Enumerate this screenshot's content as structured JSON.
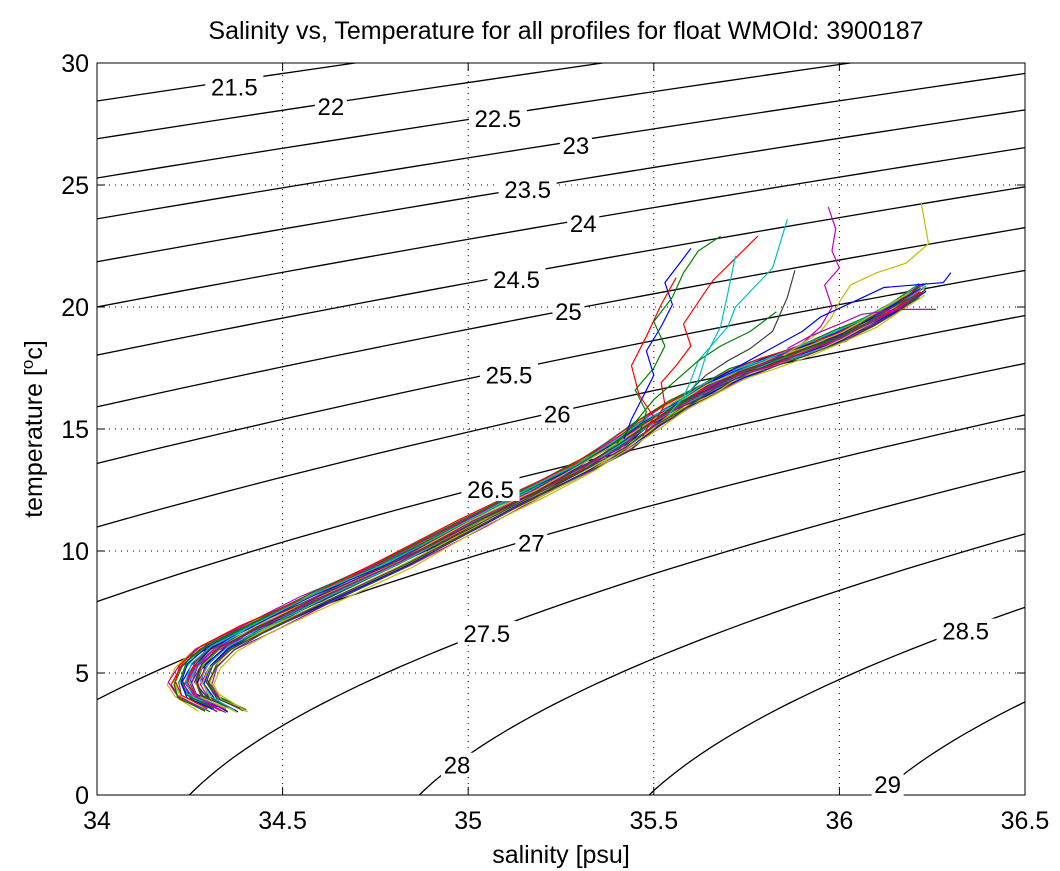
{
  "chart_data": {
    "type": "line",
    "title": "Salinity vs, Temperature for all profiles for float WMOId: 3900187",
    "xlabel": "salinity [psu]",
    "ylabel_prefix": "temperature [",
    "ylabel_sup": "o",
    "ylabel_suffix": "c]",
    "xlim": [
      34,
      36.5
    ],
    "ylim": [
      0,
      30
    ],
    "grid": true,
    "x_ticks": [
      34,
      34.5,
      35,
      35.5,
      36,
      36.5
    ],
    "x_tick_labels": [
      "34",
      "34.5",
      "35",
      "35.5",
      "36",
      "36.5"
    ],
    "y_ticks": [
      0,
      5,
      10,
      15,
      20,
      25,
      30
    ],
    "y_tick_labels": [
      "0",
      "5",
      "10",
      "15",
      "20",
      "25",
      "30"
    ],
    "density_contours": {
      "levels": [
        21.5,
        22,
        22.5,
        23,
        23.5,
        24,
        24.5,
        25,
        25.5,
        26,
        26.5,
        27,
        27.5,
        28,
        28.5,
        29
      ],
      "labels": [
        {
          "text": "21.5",
          "s": 34.37,
          "t": 29.0
        },
        {
          "text": "22",
          "s": 34.63,
          "t": 28.2
        },
        {
          "text": "22.5",
          "s": 35.08,
          "t": 27.7
        },
        {
          "text": "23",
          "s": 35.29,
          "t": 26.6
        },
        {
          "text": "23.5",
          "s": 35.16,
          "t": 24.8
        },
        {
          "text": "24",
          "s": 35.31,
          "t": 23.4
        },
        {
          "text": "24.5",
          "s": 35.13,
          "t": 21.1
        },
        {
          "text": "25",
          "s": 35.27,
          "t": 19.8
        },
        {
          "text": "25.5",
          "s": 35.11,
          "t": 17.2
        },
        {
          "text": "26",
          "s": 35.24,
          "t": 15.6
        },
        {
          "text": "26.5",
          "s": 35.06,
          "t": 12.5
        },
        {
          "text": "27",
          "s": 35.17,
          "t": 10.3
        },
        {
          "text": "27.5",
          "s": 35.05,
          "t": 6.6
        },
        {
          "text": "28",
          "s": 34.97,
          "t": 1.2
        },
        {
          "text": "28.5",
          "s": 36.34,
          "t": 6.7
        },
        {
          "text": "29",
          "s": 36.13,
          "t": 0.4
        }
      ]
    },
    "series_colors": [
      "#0000ff",
      "#008000",
      "#ff0000",
      "#00bfbf",
      "#bf00bf",
      "#bfbf00",
      "#404040"
    ],
    "profile_count": 42,
    "common_profile": {
      "salinity": [
        34.34,
        34.27,
        34.25,
        34.27,
        34.32,
        34.42,
        34.6,
        34.8,
        35.0,
        35.17,
        35.3,
        35.4,
        35.48,
        35.56,
        35.64,
        35.72,
        35.81,
        35.9,
        36.0,
        36.08,
        36.15,
        36.22
      ],
      "temperature": [
        3.5,
        4.0,
        4.6,
        5.3,
        6.0,
        6.8,
        8.1,
        9.5,
        11.1,
        12.4,
        13.4,
        14.3,
        15.2,
        15.9,
        16.6,
        17.2,
        17.7,
        18.2,
        18.8,
        19.4,
        20.0,
        20.7
      ]
    },
    "representative_profiles": [
      {
        "salinity": [
          35.42,
          35.44,
          35.47,
          35.5,
          35.48,
          35.52,
          35.55,
          35.53,
          35.57,
          35.6
        ],
        "temperature": [
          14.6,
          15.4,
          16.3,
          17.2,
          18.2,
          19.2,
          20.1,
          21.0,
          21.8,
          22.4
        ]
      },
      {
        "salinity": [
          35.46,
          35.48,
          35.45,
          35.5,
          35.53,
          35.5,
          35.55,
          35.58,
          35.62,
          35.68
        ],
        "temperature": [
          14.8,
          15.7,
          16.6,
          17.5,
          18.4,
          19.4,
          20.4,
          21.4,
          22.3,
          22.9
        ]
      },
      {
        "salinity": [
          35.5,
          35.53,
          35.52,
          35.56,
          35.6,
          35.58,
          35.62,
          35.66,
          35.72,
          35.78
        ],
        "temperature": [
          15.2,
          16.0,
          16.9,
          17.6,
          18.4,
          19.3,
          20.2,
          21.1,
          22.0,
          22.9
        ]
      },
      {
        "salinity": [
          35.54,
          35.58,
          35.6,
          35.62,
          35.66,
          35.7,
          35.72,
          35.77,
          35.82,
          35.86
        ],
        "temperature": [
          15.6,
          16.3,
          17.0,
          17.8,
          18.5,
          19.2,
          20.0,
          20.8,
          21.6,
          23.6
        ]
      },
      {
        "salinity": [
          35.78,
          35.84,
          35.9,
          35.95,
          35.98,
          35.96,
          36.0,
          35.98,
          35.99,
          35.97
        ],
        "temperature": [
          17.6,
          18.0,
          18.5,
          19.2,
          20.0,
          20.9,
          21.6,
          22.3,
          23.2,
          24.1
        ]
      },
      {
        "salinity": [
          35.85,
          35.9,
          35.95,
          35.98,
          36.0,
          36.03,
          36.1,
          36.18,
          36.24,
          36.22
        ],
        "temperature": [
          18.0,
          18.5,
          19.0,
          19.6,
          20.2,
          20.9,
          21.4,
          21.8,
          22.6,
          24.3
        ]
      },
      {
        "salinity": [
          35.6,
          35.64,
          35.7,
          35.76,
          35.82,
          35.86,
          35.88
        ],
        "temperature": [
          16.6,
          17.2,
          17.8,
          18.3,
          19.0,
          20.4,
          21.5
        ]
      },
      {
        "salinity": [
          35.66,
          35.72,
          35.78,
          35.84,
          35.9,
          35.95,
          36.05,
          36.12,
          36.28,
          36.3
        ],
        "temperature": [
          17.0,
          17.5,
          18.0,
          18.5,
          19.0,
          19.6,
          20.3,
          20.8,
          21.0,
          21.4
        ]
      },
      {
        "salinity": [
          35.4,
          35.44,
          35.5,
          35.56,
          35.62,
          35.68,
          35.76,
          35.83
        ],
        "temperature": [
          14.4,
          15.1,
          16.2,
          17.0,
          17.8,
          18.4,
          19.0,
          19.8
        ]
      },
      {
        "salinity": [
          35.47,
          35.5,
          35.46,
          35.44,
          35.48,
          35.52,
          35.56
        ],
        "temperature": [
          14.7,
          15.5,
          16.4,
          17.6,
          18.8,
          20.1,
          21.2
        ]
      },
      {
        "salinity": [
          35.58,
          35.62,
          35.64,
          35.68,
          35.7,
          35.72
        ],
        "temperature": [
          16.2,
          17.0,
          18.0,
          19.2,
          20.6,
          22.1
        ]
      },
      {
        "salinity": [
          35.86,
          35.92,
          36.0,
          36.06,
          36.16,
          36.26
        ],
        "temperature": [
          18.3,
          18.8,
          19.3,
          19.7,
          19.9,
          19.9
        ]
      }
    ]
  }
}
